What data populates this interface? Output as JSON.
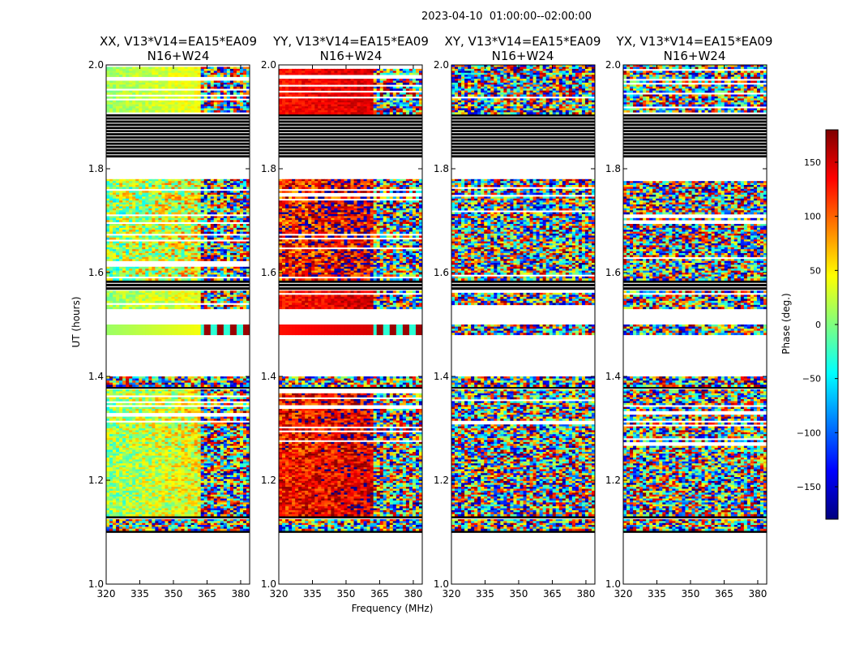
{
  "header": {
    "timestamp": "2023-04-10  01:00:00--02:00:00"
  },
  "axes": {
    "xlabel": "Frequency (MHz)",
    "ylabel": "UT (hours)",
    "xlim": [
      320,
      384
    ],
    "ylim": [
      1.0,
      2.0
    ],
    "xticks": [
      "320",
      "335",
      "350",
      "365",
      "380"
    ],
    "yticks": [
      "1.0",
      "1.2",
      "1.4",
      "1.6",
      "1.8",
      "2.0"
    ]
  },
  "colorbar": {
    "label": "Phase (deg.)",
    "range": [
      -180,
      180
    ],
    "ticks": [
      "150",
      "100",
      "50",
      "0",
      "−50",
      "−100",
      "−150"
    ],
    "colors": [
      "#00007f",
      "#0000ff",
      "#007fff",
      "#00ffff",
      "#7fff7f",
      "#ffff00",
      "#ff7f00",
      "#ff0000",
      "#7f0000"
    ]
  },
  "chart_data": {
    "type": "heatmap",
    "title": "2023-04-10  01:00:00--02:00:00",
    "xlabel": "Frequency (MHz)",
    "ylabel": "UT (hours)",
    "xlim": [
      320,
      384
    ],
    "ylim": [
      1.0,
      2.0
    ],
    "color_range": [
      -180,
      180
    ],
    "panels": [
      {
        "line1": "XX, V13*V14=EA15*EA09",
        "line2": "N16+W24",
        "mean_phase_low_freq": 10,
        "mean_phase_high_freq": 60,
        "coherent": true
      },
      {
        "line1": "YY, V13*V14=EA15*EA09",
        "line2": "N16+W24",
        "mean_phase_low_freq": 130,
        "mean_phase_high_freq": 160,
        "coherent": true
      },
      {
        "line1": "XY, V13*V14=EA15*EA09",
        "line2": "N16+W24",
        "coherent": false
      },
      {
        "line1": "YX, V13*V14=EA15*EA09",
        "line2": "N16+W24",
        "coherent": false
      }
    ],
    "flagged_ut_ranges": [
      [
        1.0,
        1.1
      ],
      [
        1.47,
        1.465
      ],
      [
        1.78,
        1.82
      ]
    ],
    "blank_ut_ranges": [
      [
        1.0,
        1.095
      ],
      [
        1.465,
        1.48
      ],
      [
        1.5,
        1.53
      ],
      [
        1.78,
        1.82
      ]
    ]
  }
}
